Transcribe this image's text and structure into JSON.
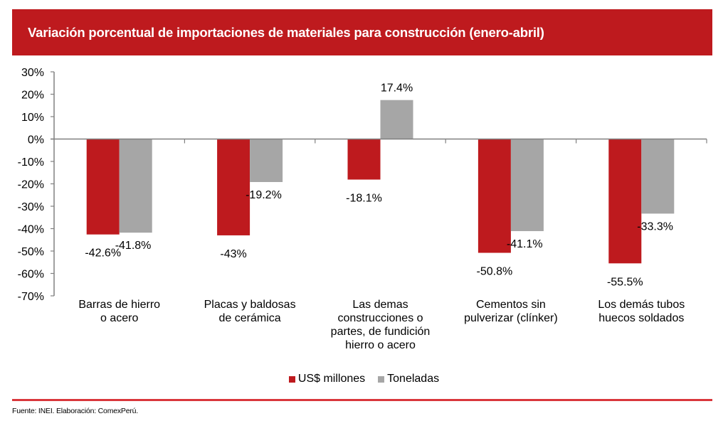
{
  "header": {
    "title": "Variación porcentual de importaciones de materiales para construcción (enero-abril)"
  },
  "colors": {
    "brand_red": "#BE1A1E",
    "series_red": "#BE1A1E",
    "series_gray": "#A6A6A6",
    "axis": "#808080",
    "footer_line": "#D9363B"
  },
  "chart_data": {
    "type": "bar",
    "title": "Variación porcentual de importaciones de materiales para construcción (enero-abril)",
    "xlabel": "",
    "ylabel": "",
    "ylim": [
      -70,
      30
    ],
    "yticks": [
      30,
      20,
      10,
      0,
      -10,
      -20,
      -30,
      -40,
      -50,
      -60,
      -70
    ],
    "ytick_labels": [
      "30%",
      "20%",
      "10%",
      "0%",
      "-10%",
      "-20%",
      "-30%",
      "-40%",
      "-50%",
      "-60%",
      "-70%"
    ],
    "grid": false,
    "legend_position": "bottom-center",
    "categories": [
      [
        "Barras de hierro",
        "o acero"
      ],
      [
        "Placas y baldosas",
        "de cerámica"
      ],
      [
        "Las demas",
        "construcciones o",
        "partes, de fundición",
        "hierro o acero"
      ],
      [
        "Cementos sin",
        "pulverizar (clínker)"
      ],
      [
        "Los demás tubos",
        "huecos soldados"
      ]
    ],
    "series": [
      {
        "name": "US$ millones",
        "color": "#BE1A1E",
        "values": [
          -42.6,
          -43.0,
          -18.1,
          -50.8,
          -55.5
        ],
        "labels": [
          "-42.6%",
          "-43%",
          "-18.1%",
          "-50.8%",
          "-55.5%"
        ]
      },
      {
        "name": "Toneladas",
        "color": "#A6A6A6",
        "values": [
          -41.8,
          -19.2,
          17.4,
          -41.1,
          -33.3
        ],
        "labels": [
          "-41.8%",
          "-19.2%",
          "17.4%",
          "-41.1%",
          "-33.3%"
        ]
      }
    ]
  },
  "legend": {
    "items": [
      {
        "label": "US$ millones",
        "color": "#BE1A1E"
      },
      {
        "label": "Toneladas",
        "color": "#A6A6A6"
      }
    ]
  },
  "footer": {
    "source": "Fuente: INEI. Elaboración: ComexPerú."
  }
}
